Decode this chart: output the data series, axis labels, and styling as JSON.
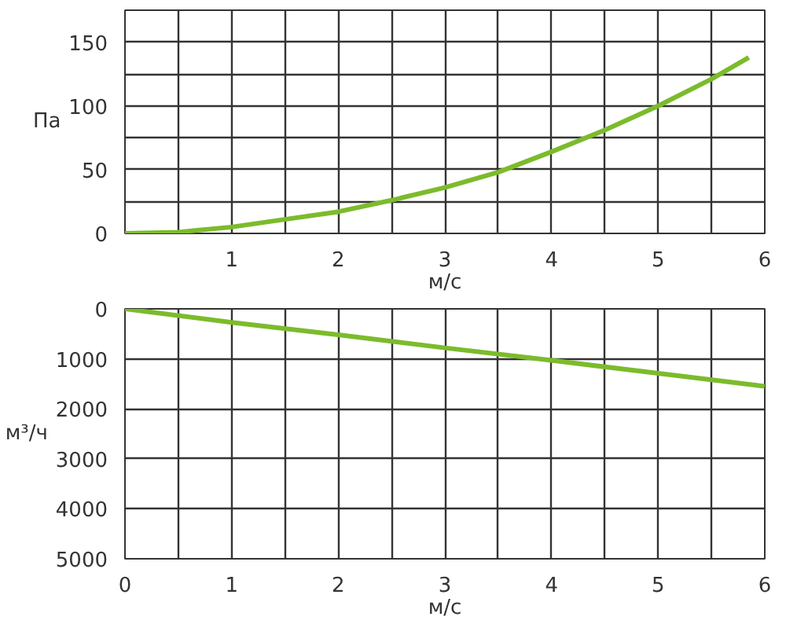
{
  "chart_data": [
    {
      "type": "line",
      "xlabel": "м/с",
      "ylabel": "Па",
      "x": [
        0,
        0.5,
        1,
        1.5,
        2,
        2.5,
        3,
        3.5,
        4,
        4.5,
        5,
        5.5,
        5.85
      ],
      "series": [
        {
          "color": "#7cbb2c",
          "values": [
            0,
            1,
            5,
            11,
            17,
            26,
            36,
            48,
            64,
            81,
            100,
            121,
            138
          ]
        }
      ],
      "xlim": [
        0,
        6
      ],
      "ylim": [
        0,
        175
      ],
      "xticks": [
        {
          "value": 0,
          "label": null
        },
        {
          "value": 0.5,
          "label": null
        },
        1,
        {
          "value": 1.5,
          "label": null
        },
        2,
        {
          "value": 2.5,
          "label": null
        },
        3,
        {
          "value": 3.5,
          "label": null
        },
        4,
        {
          "value": 4.5,
          "label": null
        },
        5,
        {
          "value": 5.5,
          "label": null
        },
        6
      ],
      "yticks": [
        0,
        {
          "value": 25,
          "label": null
        },
        50,
        {
          "value": 75,
          "label": null
        },
        100,
        {
          "value": 125,
          "label": null
        },
        150,
        {
          "value": 175,
          "label": null
        }
      ],
      "grid": true
    },
    {
      "type": "line",
      "xlabel": "м/с",
      "ylabel": "м³/ч",
      "x": [
        0,
        1,
        2,
        3,
        4,
        5,
        6
      ],
      "series": [
        {
          "color": "#7cbb2c",
          "values": [
            0,
            270,
            520,
            780,
            1030,
            1290,
            1550
          ]
        }
      ],
      "xlim": [
        0,
        6
      ],
      "ylim": [
        5000,
        0
      ],
      "xticks": [
        0,
        {
          "value": 0.5,
          "label": null
        },
        1,
        {
          "value": 1.5,
          "label": null
        },
        2,
        {
          "value": 2.5,
          "label": null
        },
        3,
        {
          "value": 3.5,
          "label": null
        },
        4,
        {
          "value": 4.5,
          "label": null
        },
        5,
        {
          "value": 5.5,
          "label": null
        },
        6
      ],
      "yticks": [
        0,
        1000,
        2000,
        3000,
        4000,
        5000
      ],
      "grid": true
    }
  ]
}
